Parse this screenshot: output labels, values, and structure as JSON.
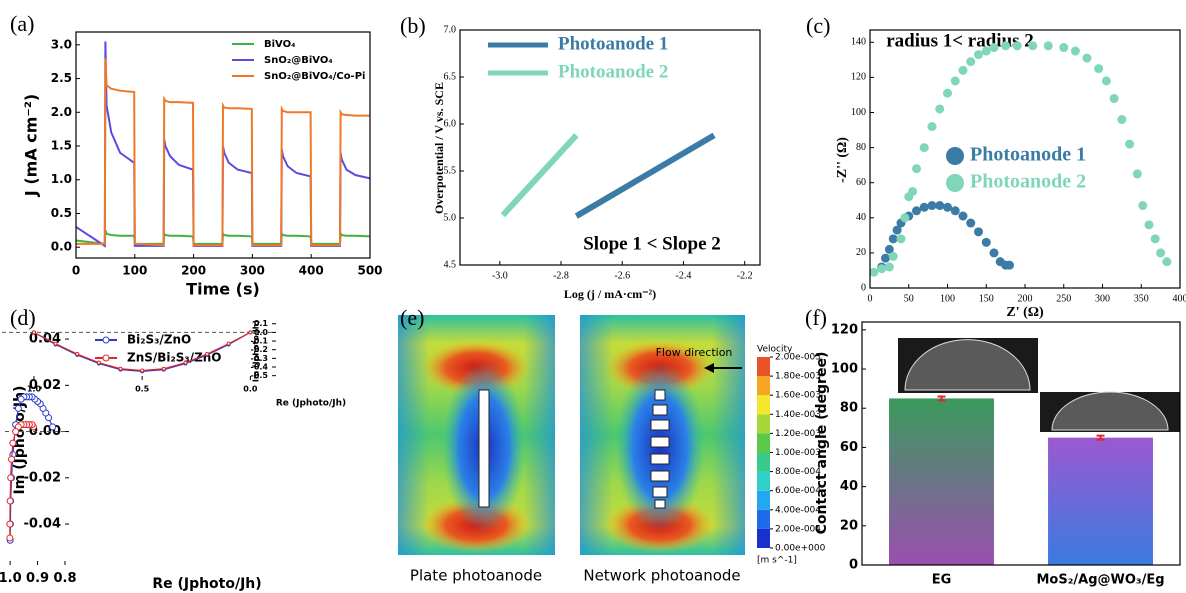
{
  "chart_data": [
    {
      "type": "line",
      "label": "(a)",
      "x_label": "Time (s)",
      "y_label": "J (mA cm⁻²)",
      "x": [
        0,
        49,
        50,
        52,
        60,
        75,
        99,
        100,
        149,
        150,
        152,
        160,
        175,
        199,
        200,
        249,
        250,
        252,
        260,
        275,
        299,
        300,
        349,
        350,
        352,
        360,
        375,
        399,
        400,
        449,
        450,
        452,
        460,
        475,
        500
      ],
      "series": [
        {
          "name": "BiVO₄",
          "color": "#3cb43c",
          "values": [
            0.1,
            0.05,
            0.25,
            0.2,
            0.18,
            0.17,
            0.17,
            0.05,
            0.05,
            0.2,
            0.18,
            0.17,
            0.17,
            0.16,
            0.05,
            0.05,
            0.2,
            0.18,
            0.17,
            0.17,
            0.16,
            0.05,
            0.05,
            0.2,
            0.18,
            0.17,
            0.17,
            0.16,
            0.05,
            0.05,
            0.2,
            0.18,
            0.17,
            0.17,
            0.16
          ]
        },
        {
          "name": "SnO₂@BiVO₄",
          "color": "#5b4be0",
          "values": [
            0.3,
            0.02,
            3.05,
            2.1,
            1.7,
            1.4,
            1.25,
            0.02,
            0.02,
            1.6,
            1.5,
            1.35,
            1.22,
            1.15,
            0.02,
            0.02,
            1.5,
            1.4,
            1.25,
            1.15,
            1.1,
            0.02,
            0.02,
            1.45,
            1.35,
            1.2,
            1.1,
            1.05,
            0.02,
            0.02,
            1.4,
            1.3,
            1.15,
            1.07,
            1.02
          ]
        },
        {
          "name": "SnO₂@BiVO₄/Co-Pi",
          "color": "#f07828",
          "values": [
            0.05,
            0.05,
            2.8,
            2.4,
            2.35,
            2.32,
            2.3,
            0.05,
            0.03,
            2.2,
            2.17,
            2.15,
            2.15,
            2.14,
            0.03,
            0.03,
            2.1,
            2.07,
            2.06,
            2.06,
            2.05,
            0.03,
            0.03,
            2.05,
            2.02,
            2.0,
            2.0,
            2.0,
            0.03,
            0.03,
            2.0,
            1.97,
            1.96,
            1.95,
            1.95
          ]
        }
      ],
      "xlim": [
        0,
        500
      ],
      "xticks": [
        0,
        100,
        200,
        300,
        400,
        500
      ],
      "ylim": [
        -0.16,
        3.19
      ],
      "yticks": [
        {
          "value": 0,
          "label": "0.0"
        },
        0.5,
        {
          "value": 1,
          "label": "1.0"
        },
        1.5,
        {
          "value": 2,
          "label": "2.0"
        },
        2.5,
        {
          "value": 3,
          "label": "3.0"
        }
      ],
      "legend": "upper right"
    },
    {
      "type": "line",
      "label": "(b)",
      "x_label": "Log (j / mA·cm⁻²)",
      "y_label": "Overpotential / V vs. SCE",
      "annotation": "Slope 1 < Slope 2",
      "series": [
        {
          "name": "Photoanode 1",
          "color": "#3a7ca5",
          "x": [
            -2.75,
            -2.3
          ],
          "values": [
            5.02,
            5.88
          ]
        },
        {
          "name": "Photoanode 2",
          "color": "#7fd6b8",
          "x": [
            -2.99,
            -2.75
          ],
          "values": [
            5.03,
            5.88
          ]
        }
      ],
      "xlim": [
        -3.13,
        -2.15
      ],
      "xticks": [
        {
          "value": -3,
          "label": "-3.0"
        },
        -2.8,
        -2.6,
        -2.4,
        -2.2
      ],
      "ylim": [
        4.5,
        7.0
      ],
      "yticks": [
        4.5,
        {
          "value": 5,
          "label": "5.0"
        },
        5.5,
        {
          "value": 6,
          "label": "6.0"
        },
        6.5,
        {
          "value": 7,
          "label": "7.0"
        }
      ],
      "legend": "upper left"
    },
    {
      "type": "scatter",
      "label": "(c)",
      "x_label": "Z' (Ω)",
      "y_label": "-Z'' (Ω)",
      "annotation": "radius 1< radius 2",
      "series": [
        {
          "name": "Photoanode 1",
          "color": "#3a7ca5",
          "x": [
            15,
            20,
            25,
            30,
            35,
            40,
            50,
            60,
            70,
            80,
            90,
            100,
            110,
            120,
            130,
            140,
            150,
            160,
            168,
            175,
            180
          ],
          "values": [
            12,
            17,
            22,
            28,
            33,
            37,
            41,
            44,
            46,
            47,
            47,
            46,
            44,
            41,
            37,
            32,
            26,
            20,
            15,
            13,
            13
          ]
        },
        {
          "name": "Photoanode 2",
          "color": "#7fd6b8",
          "x": [
            5,
            15,
            25,
            30,
            40,
            45,
            50,
            55,
            60,
            70,
            80,
            90,
            100,
            110,
            120,
            130,
            140,
            150,
            160,
            175,
            190,
            210,
            230,
            250,
            265,
            280,
            295,
            305,
            315,
            325,
            335,
            345,
            352,
            360,
            368,
            375,
            383
          ],
          "values": [
            9,
            11,
            12,
            18,
            28,
            40,
            52,
            55,
            68,
            80,
            92,
            102,
            111,
            118,
            124,
            129,
            133,
            135,
            137,
            138,
            138,
            138,
            138,
            137,
            135,
            131,
            125,
            118,
            108,
            96,
            82,
            65,
            47,
            36,
            28,
            20,
            15
          ]
        }
      ],
      "xlim": [
        0,
        400
      ],
      "xticks": [
        0,
        50,
        100,
        150,
        200,
        250,
        300,
        350,
        400
      ],
      "ylim": [
        0,
        147
      ],
      "yticks": [
        0,
        20,
        40,
        60,
        80,
        100,
        120,
        140
      ],
      "legend": "center"
    },
    {
      "type": "line",
      "markers": true,
      "label": "(d)",
      "x_label": "Re (Jphoto/Jh)",
      "y_label": "Im (Jphoto/Jh)",
      "hline": 0,
      "series": [
        {
          "name": "Bi₂S₃/ZnO",
          "color": "#2a3ad0",
          "x": [
            0.845,
            0.86,
            0.87,
            0.88,
            0.89,
            0.9,
            0.91,
            0.92,
            0.93,
            0.94,
            0.95,
            0.96,
            0.97,
            0.98,
            0.99,
            0.995,
            0.998,
            0.999,
            1.0
          ],
          "values": [
            0.002,
            0.006,
            0.008,
            0.01,
            0.012,
            0.013,
            0.014,
            0.015,
            0.015,
            0.015,
            0.015,
            0.014,
            0.01,
            0.003,
            -0.01,
            -0.02,
            -0.03,
            -0.04,
            -0.047
          ]
        },
        {
          "name": "ZnS/Bi₂S₃/ZnO",
          "color": "#e02828",
          "x": [
            0.915,
            0.92,
            0.93,
            0.94,
            0.95,
            0.96,
            0.97,
            0.98,
            0.99,
            0.995,
            0.998,
            1.0,
            1.001,
            1.001
          ],
          "values": [
            0.002,
            0.003,
            0.003,
            0.003,
            0.003,
            0.003,
            0.002,
            0.0,
            -0.005,
            -0.012,
            -0.02,
            -0.03,
            -0.04,
            -0.046
          ]
        }
      ],
      "xlim": [
        0.8,
        1.026
      ],
      "xticks": [
        0.8,
        0.9,
        {
          "value": 1,
          "label": "1.0"
        }
      ],
      "ylim": [
        -0.0577,
        0.0504
      ],
      "yticks": [
        -0.04,
        -0.02,
        {
          "value": 0,
          "label": "0.00"
        },
        0.02,
        0.04
      ],
      "legend": "upper left"
    },
    {
      "type": "line",
      "markers": true,
      "inset": true,
      "x_label": "Re (Jphoto/Jh)",
      "y_label": "Im (Jphoto/Jh)",
      "hline": 0,
      "series": [
        {
          "name": "Bi₂S₃/ZnO",
          "color": "#2a3ad0",
          "x": [
            0,
            0.1,
            0.2,
            0.3,
            0.4,
            0.5,
            0.6,
            0.7,
            0.8,
            0.9,
            1.0
          ],
          "values": [
            0,
            -0.14,
            -0.26,
            -0.36,
            -0.43,
            -0.45,
            -0.43,
            -0.36,
            -0.26,
            -0.14,
            0
          ]
        },
        {
          "name": "ZnS/Bi₂S₃/ZnO",
          "color": "#e02828",
          "x": [
            0,
            0.1,
            0.2,
            0.3,
            0.4,
            0.5,
            0.6,
            0.7,
            0.8,
            0.9,
            1.0
          ],
          "values": [
            0,
            -0.13,
            -0.25,
            -0.35,
            -0.42,
            -0.44,
            -0.42,
            -0.35,
            -0.25,
            -0.13,
            0
          ]
        }
      ],
      "xlim": [
        -0.1,
        1.15
      ],
      "xticks": [
        {
          "value": 0,
          "label": "0.0"
        },
        0.5,
        {
          "value": 1,
          "label": "1.0"
        }
      ],
      "ylim": [
        -0.55,
        0.12
      ],
      "yticks": [
        0.1,
        {
          "value": 0,
          "label": "0.0"
        },
        -0.1,
        -0.2,
        -0.3,
        -0.4,
        -0.5
      ]
    },
    {
      "type": "contour",
      "label": "(e)",
      "colorbar_title": "Velocity",
      "unit_label": "[m s^-1]",
      "annotation": "Flow direction",
      "panel_titles": [
        "Plate photoanode",
        "Network photoanode"
      ],
      "clim": [
        0,
        0.002
      ],
      "cticks": [
        {
          "value": 0.002,
          "label": "2.00e-003"
        },
        {
          "value": 0.0018,
          "label": "1.80e-003"
        },
        {
          "value": 0.0016,
          "label": "1.60e-003"
        },
        {
          "value": 0.0014,
          "label": "1.40e-003"
        },
        {
          "value": 0.0012,
          "label": "1.20e-003"
        },
        {
          "value": 0.001,
          "label": "1.00e-003"
        },
        {
          "value": 0.0008,
          "label": "8.00e-004"
        },
        {
          "value": 0.0006,
          "label": "6.00e-004"
        },
        {
          "value": 0.0004,
          "label": "4.00e-004"
        },
        {
          "value": 0.0002,
          "label": "2.00e-004"
        },
        {
          "value": 0,
          "label": "0.00e+000"
        }
      ],
      "colors": [
        "#1a2fd0",
        "#1f6ae8",
        "#23a7f0",
        "#2fd0c8",
        "#39c98a",
        "#5bc94a",
        "#a6d83a",
        "#f3e62c",
        "#f5a623",
        "#e8532a"
      ]
    },
    {
      "type": "bar",
      "label": "(f)",
      "y_label": "Contact angle (degree)",
      "categories": [
        "EG",
        "MoS₂/Ag@WO₃/Eg"
      ],
      "values": [
        85,
        65
      ],
      "errors": [
        1,
        1
      ],
      "colors": [
        [
          "#3a9a5c",
          "#9b4fb0"
        ],
        [
          "#9b59d0",
          "#3a7be0"
        ]
      ],
      "error_color": "#e02828",
      "ylim": [
        0,
        124
      ],
      "yticks": [
        0,
        20,
        40,
        60,
        80,
        100,
        120
      ]
    }
  ]
}
